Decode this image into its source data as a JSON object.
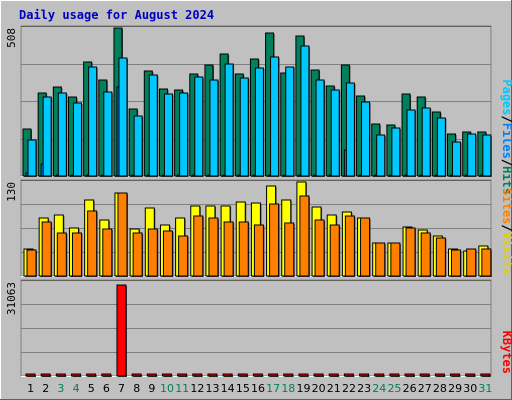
{
  "title": "Daily usage for August 2024",
  "colors": {
    "background": "#c0c0c0",
    "title": "#0000c0",
    "hits": "#00805c",
    "files": "#0080ff",
    "pages": "#00c8ff",
    "visits": "#ffff00",
    "sites": "#ff8000",
    "kbytes": "#ff0000",
    "weekend_day": "#00805c",
    "weekday": "#000000"
  },
  "legend": {
    "pages": "Pages",
    "files": "Files",
    "hits": "Hits",
    "sep": "/",
    "sites": "Sites",
    "visits": "Visits",
    "kbytes": "KBytes"
  },
  "chart_data": [
    {
      "type": "bar",
      "title": "Daily usage for August 2024",
      "ymax_label": "508",
      "ylim": [
        0,
        508
      ],
      "categories": [
        "1",
        "2",
        "3",
        "4",
        "5",
        "6",
        "7",
        "8",
        "9",
        "10",
        "11",
        "12",
        "13",
        "14",
        "15",
        "16",
        "17",
        "18",
        "19",
        "20",
        "21",
        "22",
        "23",
        "24",
        "25",
        "26",
        "27",
        "28",
        "29",
        "30",
        "31"
      ],
      "weekend_days": [
        "3",
        "4",
        "10",
        "11",
        "17",
        "18",
        "24",
        "25",
        "31"
      ],
      "series": [
        {
          "name": "Hits",
          "values": [
            160,
            285,
            305,
            270,
            390,
            330,
            508,
            230,
            360,
            300,
            295,
            350,
            380,
            420,
            350,
            400,
            490,
            355,
            480,
            365,
            310,
            380,
            275,
            180,
            175,
            280,
            270,
            220,
            145,
            150,
            150
          ]
        },
        {
          "name": "Files",
          "values": [
            10,
            40,
            5,
            5,
            5,
            5,
            305,
            5,
            5,
            5,
            5,
            5,
            5,
            5,
            5,
            5,
            5,
            5,
            5,
            5,
            5,
            90,
            5,
            5,
            5,
            5,
            5,
            5,
            5,
            5,
            5
          ]
        },
        {
          "name": "Pages",
          "values": [
            125,
            270,
            285,
            250,
            375,
            290,
            405,
            205,
            345,
            280,
            285,
            340,
            330,
            385,
            335,
            370,
            410,
            375,
            445,
            330,
            295,
            320,
            255,
            140,
            165,
            225,
            235,
            200,
            115,
            145,
            140
          ]
        }
      ]
    },
    {
      "type": "bar",
      "ymax_label": "130",
      "ylim": [
        0,
        130
      ],
      "categories": [
        "1",
        "2",
        "3",
        "4",
        "5",
        "6",
        "7",
        "8",
        "9",
        "10",
        "11",
        "12",
        "13",
        "14",
        "15",
        "16",
        "17",
        "18",
        "19",
        "20",
        "21",
        "22",
        "23",
        "24",
        "25",
        "26",
        "27",
        "28",
        "29",
        "30",
        "31"
      ],
      "series": [
        {
          "name": "Visits",
          "values": [
            37,
            80,
            85,
            66,
            105,
            78,
            115,
            65,
            94,
            70,
            80,
            97,
            97,
            97,
            102,
            101,
            125,
            105,
            130,
            95,
            85,
            88,
            80,
            45,
            45,
            68,
            63,
            55,
            37,
            35,
            42
          ]
        },
        {
          "name": "Sites",
          "values": [
            36,
            75,
            60,
            60,
            90,
            65,
            115,
            60,
            65,
            62,
            55,
            83,
            80,
            75,
            75,
            70,
            100,
            73,
            110,
            78,
            70,
            83,
            80,
            45,
            45,
            66,
            60,
            52,
            36,
            38,
            38
          ]
        }
      ]
    },
    {
      "type": "bar",
      "ymax_label": "31063",
      "ylim": [
        0,
        31063
      ],
      "categories": [
        "1",
        "2",
        "3",
        "4",
        "5",
        "6",
        "7",
        "8",
        "9",
        "10",
        "11",
        "12",
        "13",
        "14",
        "15",
        "16",
        "17",
        "18",
        "19",
        "20",
        "21",
        "22",
        "23",
        "24",
        "25",
        "26",
        "27",
        "28",
        "29",
        "30",
        "31"
      ],
      "series": [
        {
          "name": "KBytes",
          "values": [
            0,
            0,
            0,
            0,
            0,
            0,
            31063,
            0,
            0,
            0,
            0,
            0,
            0,
            0,
            0,
            0,
            0,
            0,
            0,
            0,
            0,
            640,
            0,
            0,
            0,
            0,
            0,
            0,
            0,
            0,
            0
          ]
        }
      ]
    }
  ]
}
